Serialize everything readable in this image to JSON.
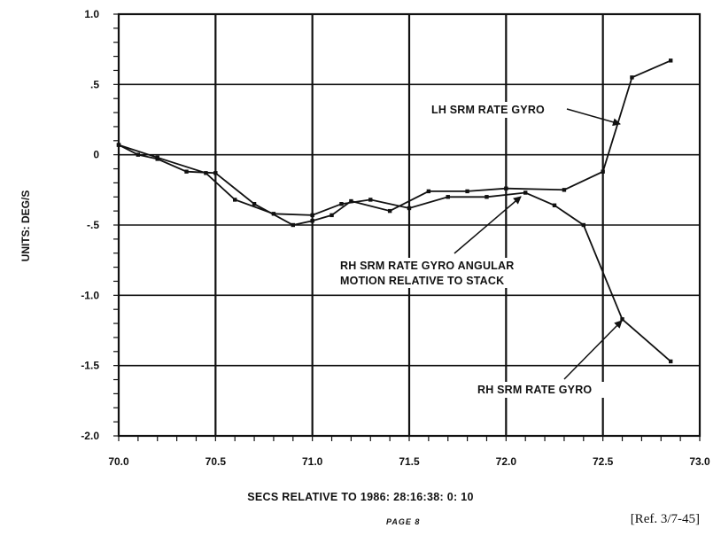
{
  "chart_data": {
    "type": "line",
    "ylabel": "UNITS:  DEG/S",
    "xlabel": "SECS RELATIVE TO 1986:  28:16:38:  0: 10",
    "xlim": [
      70.0,
      73.0
    ],
    "ylim": [
      -2.0,
      1.0
    ],
    "x_ticks": [
      "70.0",
      "70.5",
      "71.0",
      "71.5",
      "72.0",
      "72.5",
      "73.0"
    ],
    "y_ticks": [
      "1.0",
      ".5",
      "0",
      "-.5",
      "-1.0",
      "-1.5",
      "-2.0"
    ],
    "grid": true,
    "series": [
      {
        "name": "LH SRM RATE GYRO",
        "points": [
          [
            70.0,
            0.07
          ],
          [
            70.1,
            0.0
          ],
          [
            70.2,
            -0.03
          ],
          [
            70.35,
            -0.12
          ],
          [
            70.5,
            -0.13
          ],
          [
            70.7,
            -0.35
          ],
          [
            70.9,
            -0.5
          ],
          [
            71.0,
            -0.47
          ],
          [
            71.1,
            -0.43
          ],
          [
            71.2,
            -0.33
          ],
          [
            71.4,
            -0.4
          ],
          [
            71.6,
            -0.26
          ],
          [
            71.8,
            -0.26
          ],
          [
            72.0,
            -0.24
          ],
          [
            72.3,
            -0.25
          ],
          [
            72.5,
            -0.12
          ],
          [
            72.65,
            0.55
          ],
          [
            72.85,
            0.67
          ]
        ]
      },
      {
        "name": "RH SRM RATE GYRO",
        "points": [
          [
            70.0,
            0.07
          ],
          [
            70.2,
            -0.02
          ],
          [
            70.45,
            -0.13
          ],
          [
            70.6,
            -0.32
          ],
          [
            70.8,
            -0.42
          ],
          [
            71.0,
            -0.43
          ],
          [
            71.15,
            -0.35
          ],
          [
            71.3,
            -0.32
          ],
          [
            71.5,
            -0.38
          ],
          [
            71.7,
            -0.3
          ],
          [
            71.9,
            -0.3
          ],
          [
            72.1,
            -0.27
          ],
          [
            72.25,
            -0.36
          ],
          [
            72.4,
            -0.5
          ],
          [
            72.6,
            -1.17
          ],
          [
            72.85,
            -1.47
          ]
        ]
      }
    ],
    "annotations": [
      {
        "line1": "LH SRM RATE GYRO",
        "line2": ""
      },
      {
        "line1": "RH SRM RATE GYRO ANGULAR",
        "line2": "MOTION RELATIVE TO STACK"
      },
      {
        "line1": "RH SRM RATE GYRO",
        "line2": ""
      }
    ]
  },
  "footer": {
    "page": "PAGE  8",
    "ref": "[Ref. 3/7-45]"
  }
}
